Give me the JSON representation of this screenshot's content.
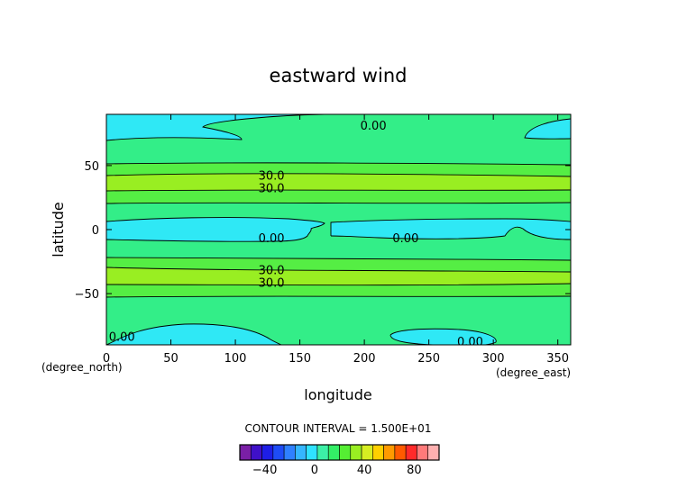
{
  "chart_data": {
    "type": "heatmap",
    "title": "eastward wind",
    "xlabel": "longitude",
    "ylabel": "latitude",
    "x_unit": "(degree_east)",
    "y_unit": "(degree_north)",
    "xlim": [
      0,
      360
    ],
    "ylim": [
      -90,
      90
    ],
    "x_ticks": [
      0,
      50,
      100,
      150,
      200,
      250,
      300,
      350
    ],
    "y_ticks": [
      -50,
      0,
      50
    ],
    "contour_interval_text": "CONTOUR INTERVAL = 1.500E+01",
    "contour_labels": [
      {
        "text": "0.00",
        "lon": 207,
        "lat": 81
      },
      {
        "text": "30.0",
        "lon": 128,
        "lat": 42
      },
      {
        "text": "30.0",
        "lon": 128,
        "lat": 32
      },
      {
        "text": "0.00",
        "lon": 128,
        "lat": -7
      },
      {
        "text": "0.00",
        "lon": 232,
        "lat": -7
      },
      {
        "text": "30.0",
        "lon": 128,
        "lat": -32
      },
      {
        "text": "30.0",
        "lon": 128,
        "lat": -42
      },
      {
        "text": "0.00",
        "lon": 12,
        "lat": -84
      },
      {
        "text": "0.00",
        "lon": 282,
        "lat": -88
      }
    ],
    "colorbar": {
      "ticks": [
        -40,
        0,
        40,
        80
      ],
      "range": [
        -60,
        100
      ],
      "colors": [
        "#7a1fa6",
        "#3f10c8",
        "#1e1ee6",
        "#1e4cf6",
        "#2f80ff",
        "#35b6ff",
        "#2fe2ff",
        "#3cf0a6",
        "#33ee66",
        "#55ee33",
        "#99ee22",
        "#d6ee22",
        "#ffd000",
        "#ff9a00",
        "#ff5a00",
        "#ff2a2a",
        "#ff7a7a",
        "#ffb0b0"
      ]
    },
    "grid": false,
    "legend": "colorbar-bottom"
  },
  "colors": {
    "band_0_15": "#33ee88",
    "band_15_30": "#55ee44",
    "band_30_45": "#99ee22",
    "band_neg": "#2fe8f5"
  }
}
